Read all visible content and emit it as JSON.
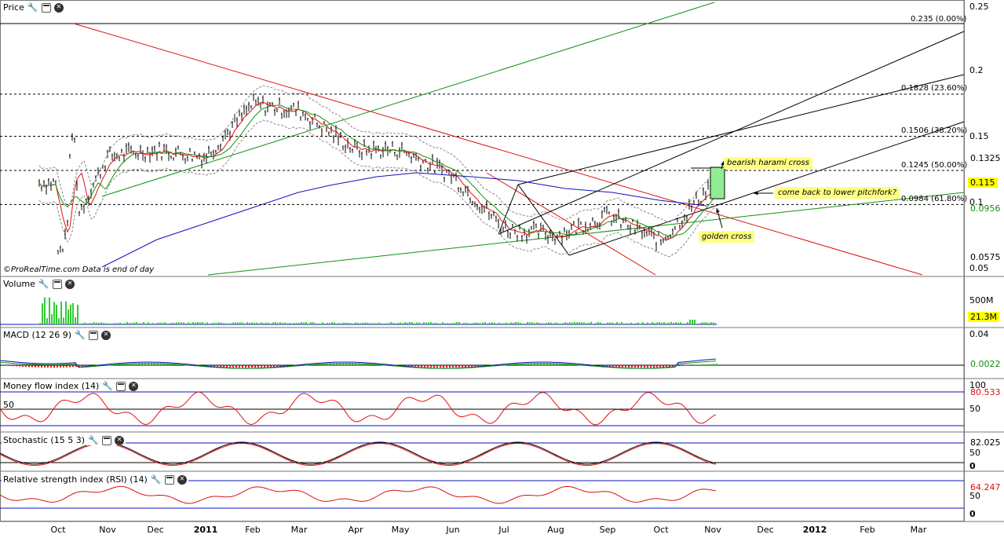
{
  "panels": {
    "price": {
      "title": "Price"
    },
    "volume": {
      "title": "Volume"
    },
    "macd": {
      "title": "MACD (12 26 9)"
    },
    "mfi": {
      "title": "Money flow index (14)"
    },
    "stoch": {
      "title": "Stochastic (15 5 3)"
    },
    "rsi": {
      "title": "Relative strength index (RSI) (14)"
    }
  },
  "price_axis": [
    "0.25",
    "0.2",
    "0.15",
    "0.1",
    "0.05"
  ],
  "price_boxes": {
    "b1": "0.1325",
    "b2": "0.115",
    "b3": "0.0956",
    "b4": "0.0575"
  },
  "fib_levels": [
    "0.235 (0.00%)",
    "0.1828 (23.60%)",
    "0.1506 (38.20%)",
    "0.1245 (50.00%)",
    "0.0984 (61.80%)"
  ],
  "footer": "©ProRealTime.com   Data is end of day",
  "notes": {
    "harami": "bearish harami cross",
    "pitchfork": "come back to lower pitchfork?",
    "golden": "golden cross"
  },
  "volume_axis": {
    "label": "500M",
    "value": "21.3M"
  },
  "macd_axis": {
    "top": "0.04",
    "value": "0.0022"
  },
  "mfi_axis": {
    "top": "100",
    "value": "80.533",
    "mid": "50",
    "left50": "50"
  },
  "stoch_axis": {
    "value": "82.025",
    "mid": "50",
    "zero": "0"
  },
  "rsi_axis": {
    "value": "64.247",
    "mid": "50",
    "zero": "0"
  },
  "x_axis": [
    "Oct",
    "Nov",
    "Dec",
    "2011",
    "Feb",
    "Mar",
    "Apr",
    "May",
    "Jun",
    "Jul",
    "Aug",
    "Sep",
    "Oct",
    "Nov",
    "Dec",
    "2012",
    "Feb",
    "Mar"
  ],
  "colors": {
    "up": "#000000",
    "ma_red": "#e01010",
    "ma_green": "#109010",
    "ma_blue": "#1010c0",
    "bollinger": "#888888",
    "volume": "#33cc33",
    "highlight_box": "#90ee90",
    "price_box": "#ffff00"
  },
  "chart_data": {
    "type": "line",
    "x": [
      "Oct",
      "Nov",
      "Dec",
      "2011",
      "Feb",
      "Mar",
      "Apr",
      "May",
      "Jun",
      "Jul",
      "Aug",
      "Sep",
      "Oct",
      "Nov"
    ],
    "series": [
      {
        "values": [
          0.06,
          0.135,
          0.14,
          0.135,
          0.175,
          0.17,
          0.14,
          0.14,
          0.12,
          0.08,
          0.075,
          0.09,
          0.07,
          0.115
        ]
      }
    ],
    "ylim": [
      0.045,
      0.25
    ],
    "last_price": 0.115,
    "volume_last": "21.3M",
    "macd_last": 0.0022,
    "mfi_last": 80.533,
    "stoch_last": 82.025,
    "rsi_last": 64.247
  }
}
